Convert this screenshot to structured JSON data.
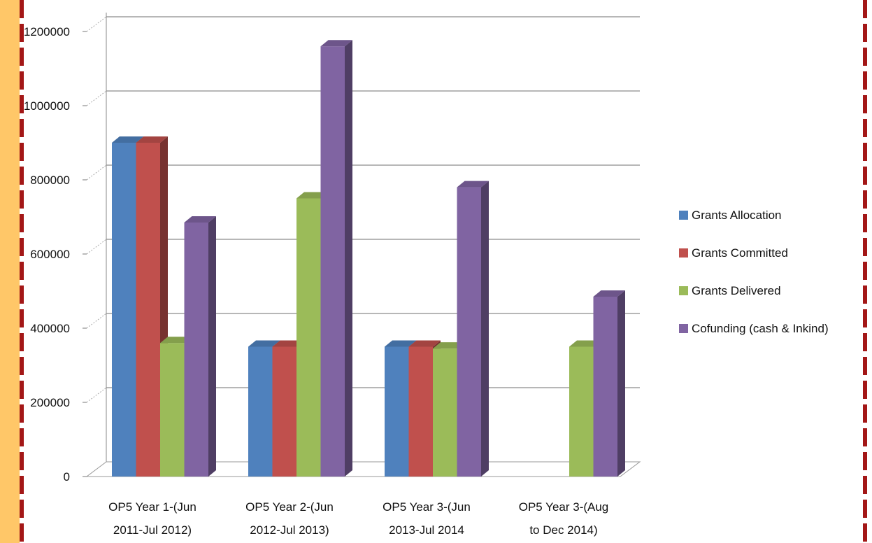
{
  "chart_data": {
    "type": "bar",
    "categories": [
      [
        "OP5 Year 1-(Jun",
        "2011-Jul 2012)"
      ],
      [
        "OP5 Year 2-(Jun",
        "2012-Jul 2013)"
      ],
      [
        "OP5 Year 3-(Jun",
        "2013-Jul 2014"
      ],
      [
        "OP5 Year 3-(Aug",
        "to Dec 2014)"
      ]
    ],
    "series": [
      {
        "name": "Grants Allocation",
        "color": "#4f81bd",
        "values": [
          900000,
          350000,
          350000,
          null
        ]
      },
      {
        "name": "Grants Committed",
        "color": "#c0504d",
        "values": [
          900000,
          350000,
          350000,
          null
        ]
      },
      {
        "name": "Grants Delivered",
        "color": "#9bbb59",
        "values": [
          360000,
          750000,
          345000,
          350000
        ]
      },
      {
        "name": "Cofunding (cash & Inkind)",
        "color": "#8064a2",
        "values": [
          685000,
          1160000,
          780000,
          485000
        ]
      }
    ],
    "ylim": [
      0,
      1200000
    ],
    "yticks": [
      "0",
      "200000",
      "400000",
      "600000",
      "800000",
      "1000000",
      "1200000"
    ],
    "grid": true,
    "legend": "right",
    "title": "",
    "xlabel": "",
    "ylabel": ""
  }
}
